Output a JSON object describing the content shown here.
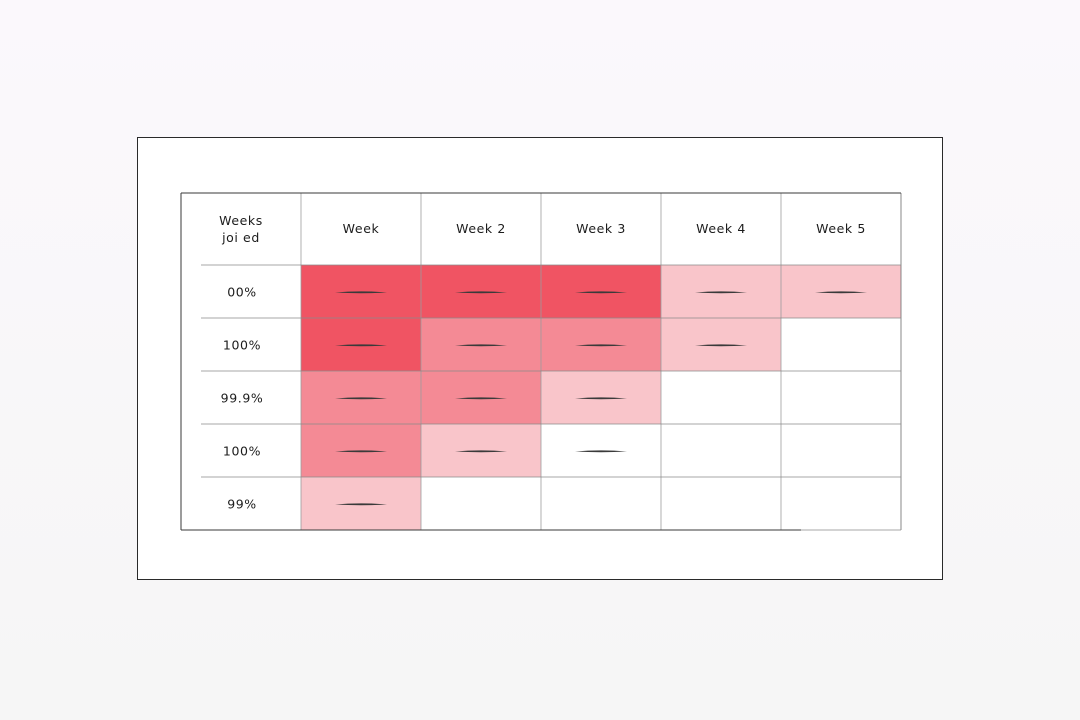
{
  "chart_data": {
    "type": "heatmap",
    "corner_header": [
      "Weeks",
      "joi  ed"
    ],
    "columns": [
      "Week",
      "Week 2",
      "Week 3",
      "Week 4",
      "Week 5"
    ],
    "rows": [
      {
        "label": "00%",
        "levels": [
          3,
          3,
          3,
          1,
          1
        ]
      },
      {
        "label": "100%",
        "levels": [
          3,
          2,
          2,
          1,
          0
        ]
      },
      {
        "label": "99.9%",
        "levels": [
          2,
          2,
          1,
          0,
          0
        ]
      },
      {
        "label": "100%",
        "levels": [
          2,
          1,
          0,
          0,
          0
        ]
      },
      {
        "label": "99%",
        "levels": [
          1,
          0,
          0,
          0,
          0
        ]
      }
    ],
    "dash_cells": [
      [
        true,
        true,
        true,
        true,
        true
      ],
      [
        true,
        true,
        true,
        true,
        false
      ],
      [
        true,
        true,
        true,
        false,
        false
      ],
      [
        true,
        true,
        true,
        false,
        false
      ],
      [
        true,
        false,
        false,
        false,
        false
      ]
    ],
    "level_colors": [
      "#ffffff",
      "#f9c5ca",
      "#f48a95",
      "#f05463"
    ]
  }
}
